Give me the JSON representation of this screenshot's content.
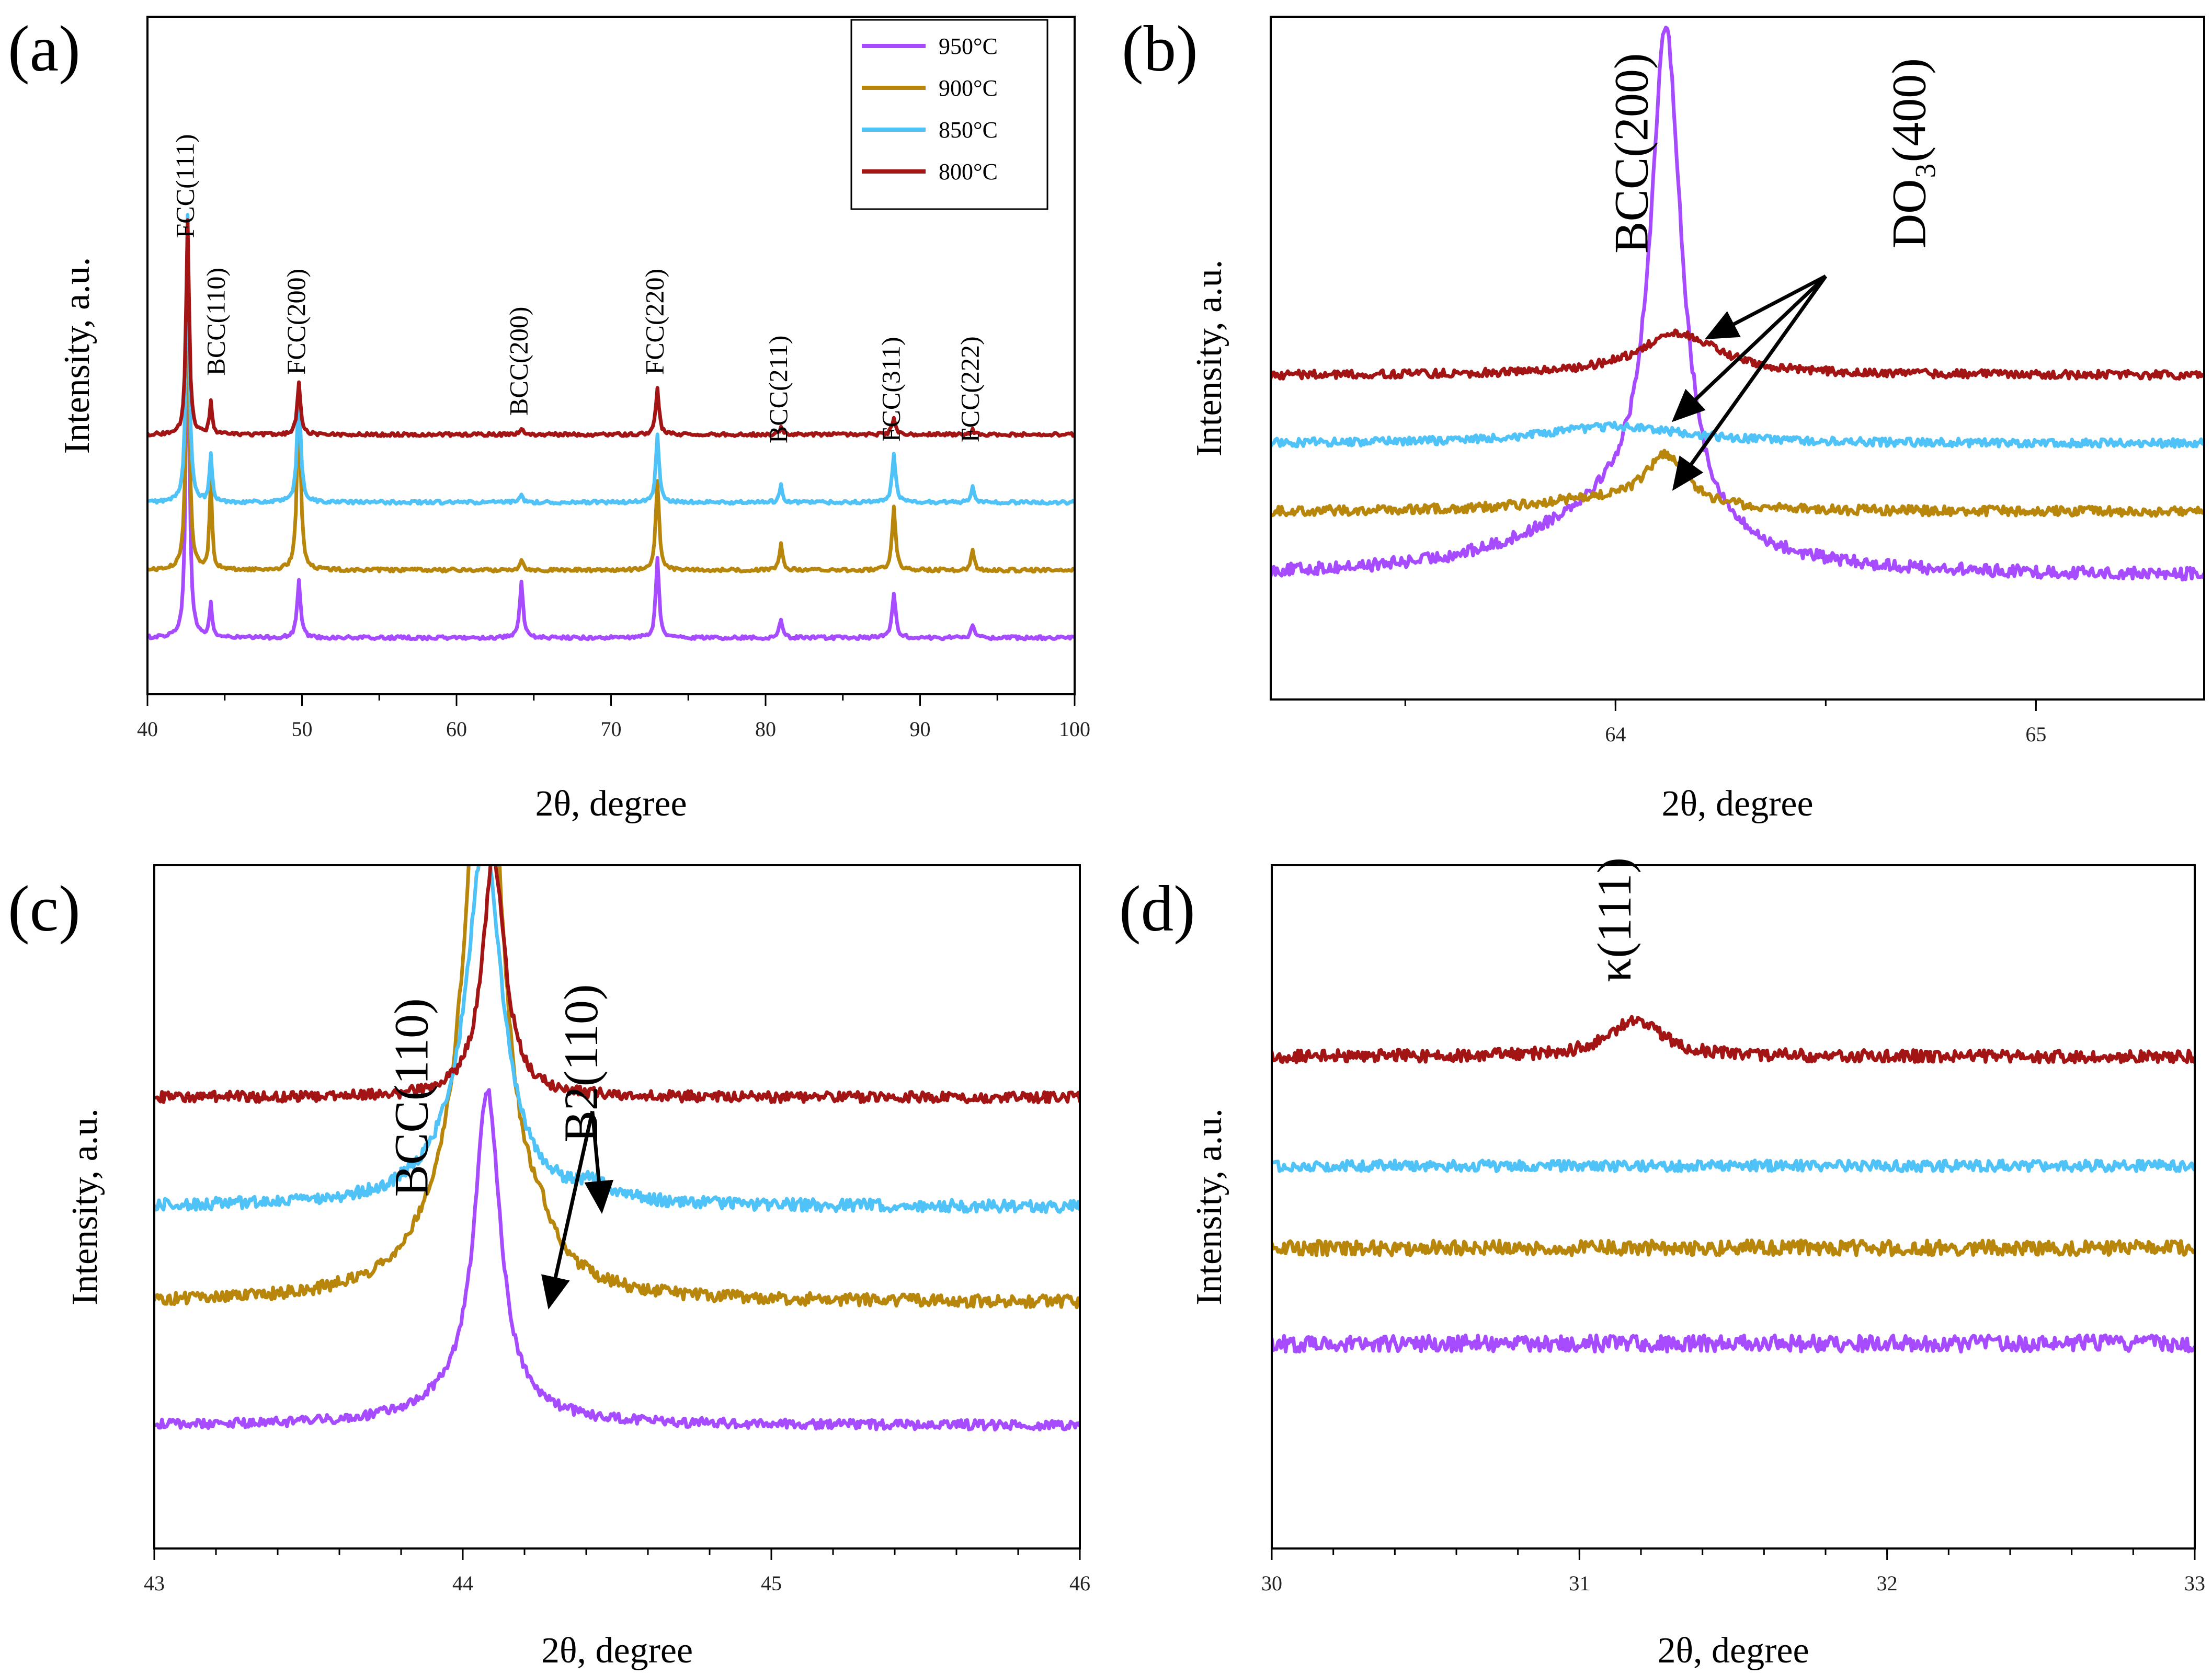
{
  "colors": {
    "c950": "#a64bff",
    "c900": "#b8860b",
    "c850": "#4fc3f7",
    "c800": "#a31414"
  },
  "legend": [
    {
      "label": "950°C",
      "color": "#a64bff"
    },
    {
      "label": "900°C",
      "color": "#b8860b"
    },
    {
      "label": "850°C",
      "color": "#4fc3f7"
    },
    {
      "label": "800°C",
      "color": "#a31414"
    }
  ],
  "chart_data": [
    {
      "id": "a",
      "letter": "(a)",
      "type": "line",
      "xlabel": "2θ, degree",
      "ylabel": "Intensity, a.u.",
      "xlim": [
        40,
        100
      ],
      "ylim": [
        0,
        12
      ],
      "xticks": [
        40,
        50,
        60,
        70,
        80,
        90,
        100
      ],
      "xtick_labels": [
        "40",
        "50",
        "60",
        "70",
        "80",
        "90",
        "100"
      ],
      "minor_step": 5,
      "series": [
        {
          "name": "950°C",
          "color": "#a64bff",
          "baseline": 1.0,
          "peaks": [
            [
              42.6,
              6.5,
              0.12
            ],
            [
              44.1,
              0.6,
              0.1
            ],
            [
              49.8,
              1.0,
              0.14
            ],
            [
              64.2,
              1.0,
              0.13
            ],
            [
              73.0,
              1.4,
              0.13
            ],
            [
              81.0,
              0.35,
              0.12
            ],
            [
              88.3,
              0.8,
              0.14
            ],
            [
              93.4,
              0.25,
              0.12
            ]
          ],
          "noise": 0.03
        },
        {
          "name": "900°C",
          "color": "#b8860b",
          "baseline": 2.2,
          "peaks": [
            [
              42.6,
              5.6,
              0.12
            ],
            [
              44.1,
              1.6,
              0.1
            ],
            [
              49.8,
              3.1,
              0.14
            ],
            [
              64.2,
              0.2,
              0.13
            ],
            [
              73.0,
              1.6,
              0.13
            ],
            [
              81.0,
              0.45,
              0.12
            ],
            [
              88.3,
              1.1,
              0.14
            ],
            [
              93.4,
              0.35,
              0.12
            ]
          ],
          "noise": 0.03
        },
        {
          "name": "850°C",
          "color": "#4fc3f7",
          "baseline": 3.4,
          "peaks": [
            [
              42.6,
              5.1,
              0.12
            ],
            [
              44.1,
              0.85,
              0.1
            ],
            [
              49.8,
              2.0,
              0.14
            ],
            [
              64.2,
              0.12,
              0.13
            ],
            [
              73.0,
              1.2,
              0.13
            ],
            [
              81.0,
              0.3,
              0.12
            ],
            [
              88.3,
              0.85,
              0.14
            ],
            [
              93.4,
              0.3,
              0.12
            ]
          ],
          "noise": 0.03
        },
        {
          "name": "800°C",
          "color": "#a31414",
          "baseline": 4.6,
          "peaks": [
            [
              42.6,
              3.8,
              0.12
            ],
            [
              44.1,
              0.6,
              0.1
            ],
            [
              49.8,
              0.9,
              0.14
            ],
            [
              64.2,
              0.1,
              0.13
            ],
            [
              73.0,
              0.8,
              0.13
            ],
            [
              81.0,
              0.12,
              0.12
            ],
            [
              88.3,
              0.3,
              0.14
            ],
            [
              93.4,
              0.08,
              0.12
            ]
          ],
          "noise": 0.03
        }
      ],
      "annotations": [
        {
          "text": "FCC(111)",
          "x": 42.6,
          "y": 9.0
        },
        {
          "text": "BCC(110)",
          "x": 44.6,
          "y": 6.6
        },
        {
          "text": "FCC(200)",
          "x": 49.8,
          "y": 6.6
        },
        {
          "text": "BCC(200)",
          "x": 64.2,
          "y": 5.9
        },
        {
          "text": "FCC(220)",
          "x": 73.0,
          "y": 6.6
        },
        {
          "text": "BCC(211)",
          "x": 81.0,
          "y": 5.4
        },
        {
          "text": "FCC(311)",
          "x": 88.3,
          "y": 5.4
        },
        {
          "text": "FCC(222)",
          "x": 93.4,
          "y": 5.4
        }
      ]
    },
    {
      "id": "b",
      "letter": "(b)",
      "type": "line",
      "xlabel": "2θ, degree",
      "ylabel": "Intensity, a.u.",
      "xlim": [
        63.18,
        65.4
      ],
      "ylim": [
        0,
        10
      ],
      "xticks": [
        64,
        65
      ],
      "xtick_labels": [
        "64",
        "65"
      ],
      "minor_step": 0.5,
      "series": [
        {
          "name": "950°C",
          "color": "#a64bff",
          "baseline": 1.8,
          "peaks": [
            [
              64.12,
              7.3,
              0.045
            ],
            [
              64.0,
              0.9,
              0.25
            ]
          ],
          "noise": 0.09
        },
        {
          "name": "900°C",
          "color": "#b8860b",
          "baseline": 2.75,
          "peaks": [
            [
              64.12,
              0.75,
              0.06
            ],
            [
              63.95,
              0.15,
              0.2
            ]
          ],
          "noise": 0.07
        },
        {
          "name": "850°C",
          "color": "#4fc3f7",
          "baseline": 3.75,
          "peaks": [
            [
              64.0,
              0.25,
              0.2
            ]
          ],
          "noise": 0.06
        },
        {
          "name": "800°C",
          "color": "#a31414",
          "baseline": 4.75,
          "peaks": [
            [
              64.15,
              0.6,
              0.12
            ]
          ],
          "noise": 0.06
        }
      ],
      "annotations": [
        {
          "text": "BCC(200)",
          "x": 64.05,
          "y": 8.0,
          "big": true
        },
        {
          "text": "DO₃(400)",
          "x": 64.71,
          "y": 8.0,
          "big": true
        }
      ],
      "arrows": [
        {
          "from": [
            64.5,
            6.2
          ],
          "to": [
            64.22,
            5.3
          ]
        },
        {
          "from": [
            64.5,
            6.2
          ],
          "to": [
            64.14,
            4.1
          ]
        },
        {
          "from": [
            64.5,
            6.2
          ],
          "to": [
            64.14,
            3.1
          ]
        }
      ]
    },
    {
      "id": "c",
      "letter": "(c)",
      "type": "line",
      "xlabel": "2θ, degree",
      "ylabel": "Intensity, a.u.",
      "xlim": [
        43,
        46
      ],
      "ylim": [
        0,
        10
      ],
      "xticks": [
        43,
        44,
        45,
        46
      ],
      "xtick_labels": [
        "43",
        "44",
        "45",
        "46"
      ],
      "minor_step": 0.2,
      "series": [
        {
          "name": "950°C",
          "color": "#a64bff",
          "baseline": 1.8,
          "peaks": [
            [
              44.08,
              4.6,
              0.05
            ],
            [
              44.02,
              0.35,
              0.18
            ]
          ],
          "noise": 0.07
        },
        {
          "name": "900°C",
          "color": "#b8860b",
          "baseline": 3.6,
          "peaks": [
            [
              44.07,
              9.0,
              0.07
            ],
            [
              43.95,
              0.6,
              0.15
            ],
            [
              44.25,
              0.4,
              0.06
            ]
          ],
          "noise": 0.09
        },
        {
          "name": "850°C",
          "color": "#4fc3f7",
          "baseline": 5.0,
          "peaks": [
            [
              44.07,
              5.2,
              0.07
            ],
            [
              43.95,
              0.3,
              0.15
            ],
            [
              44.42,
              0.2,
              0.06
            ]
          ],
          "noise": 0.09
        },
        {
          "name": "800°C",
          "color": "#a31414",
          "baseline": 6.6,
          "peaks": [
            [
              44.1,
              3.5,
              0.045
            ]
          ],
          "noise": 0.08
        }
      ],
      "annotations": [
        {
          "text": "BCC(110)",
          "x": 43.85,
          "y": 6.6,
          "big": true
        },
        {
          "text": "B2(110)",
          "x": 44.4,
          "y": 7.1,
          "big": true
        }
      ],
      "arrows": [
        {
          "from": [
            44.42,
            6.4
          ],
          "to": [
            44.28,
            3.55
          ]
        },
        {
          "from": [
            44.42,
            6.4
          ],
          "to": [
            44.45,
            4.95
          ]
        }
      ]
    },
    {
      "id": "d",
      "letter": "(d)",
      "type": "line",
      "xlabel": "2θ, degree",
      "ylabel": "Intensity, a.u.",
      "xlim": [
        30,
        33
      ],
      "ylim": [
        0,
        10
      ],
      "xticks": [
        30,
        31,
        32,
        33
      ],
      "xtick_labels": [
        "30",
        "31",
        "32",
        "33"
      ],
      "minor_step": 0.2,
      "series": [
        {
          "name": "950°C",
          "color": "#a64bff",
          "baseline": 3.0,
          "peaks": [],
          "noise": 0.12
        },
        {
          "name": "900°C",
          "color": "#b8860b",
          "baseline": 4.4,
          "peaks": [],
          "noise": 0.11
        },
        {
          "name": "850°C",
          "color": "#4fc3f7",
          "baseline": 5.6,
          "peaks": [],
          "noise": 0.08
        },
        {
          "name": "800°C",
          "color": "#a31414",
          "baseline": 7.2,
          "peaks": [
            [
              31.18,
              0.55,
              0.1
            ]
          ],
          "noise": 0.09
        }
      ],
      "annotations": [
        {
          "text": "κ(111)",
          "x": 31.13,
          "y": 9.2,
          "big": true
        }
      ]
    }
  ]
}
